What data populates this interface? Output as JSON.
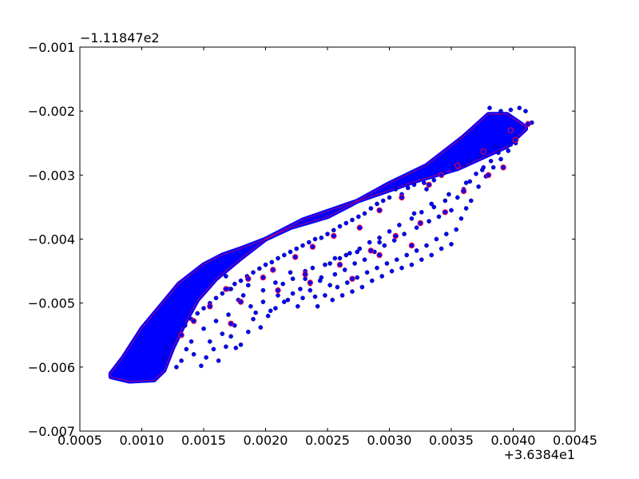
{
  "chart_data": {
    "type": "scatter",
    "title": "",
    "xlabel": "",
    "ylabel": "",
    "x_offset_label": "+3.6384e1",
    "y_offset_label": "−1.11847e2",
    "xlim": [
      0.0005,
      0.0045
    ],
    "ylim": [
      -0.007,
      -0.001
    ],
    "grid": false,
    "x_ticks": [
      {
        "value": 0.0005,
        "label": "0.0005"
      },
      {
        "value": 0.001,
        "label": "0.0010"
      },
      {
        "value": 0.0015,
        "label": "0.0015"
      },
      {
        "value": 0.002,
        "label": "0.0020"
      },
      {
        "value": 0.0025,
        "label": "0.0025"
      },
      {
        "value": 0.003,
        "label": "0.0030"
      },
      {
        "value": 0.0035,
        "label": "0.0035"
      },
      {
        "value": 0.004,
        "label": "0.0040"
      },
      {
        "value": 0.0045,
        "label": "0.0045"
      }
    ],
    "y_ticks": [
      {
        "value": -0.001,
        "label": "−0.001"
      },
      {
        "value": -0.002,
        "label": "−0.002"
      },
      {
        "value": -0.003,
        "label": "−0.003"
      },
      {
        "value": -0.004,
        "label": "−0.004"
      },
      {
        "value": -0.005,
        "label": "−0.005"
      },
      {
        "value": -0.006,
        "label": "−0.006"
      },
      {
        "value": -0.007,
        "label": "−0.007"
      }
    ],
    "series": [
      {
        "marker": "point",
        "color": "#0000ff",
        "density_region": {
          "upper_edge": [
            [
              0.00075,
              -0.0061
            ],
            [
              0.00085,
              -0.00585
            ],
            [
              0.001,
              -0.0054
            ],
            [
              0.00115,
              -0.00505
            ],
            [
              0.0013,
              -0.0047
            ],
            [
              0.0015,
              -0.0044
            ],
            [
              0.00165,
              -0.00425
            ],
            [
              0.0018,
              -0.00415
            ],
            [
              0.002,
              -0.004
            ],
            [
              0.0022,
              -0.00382
            ],
            [
              0.0025,
              -0.00365
            ],
            [
              0.0027,
              -0.00345
            ],
            [
              0.003,
              -0.00313
            ],
            [
              0.0033,
              -0.00285
            ],
            [
              0.0036,
              -0.0024
            ],
            [
              0.0038,
              -0.00205
            ],
            [
              0.00395,
              -0.00205
            ],
            [
              0.0041,
              -0.00225
            ]
          ],
          "lower_edge": [
            [
              0.0041,
              -0.00228
            ],
            [
              0.00395,
              -0.00255
            ],
            [
              0.0038,
              -0.00268
            ],
            [
              0.00355,
              -0.0029
            ],
            [
              0.0032,
              -0.0031
            ],
            [
              0.0029,
              -0.0033
            ],
            [
              0.0026,
              -0.0035
            ],
            [
              0.0023,
              -0.0037
            ],
            [
              0.002,
              -0.004
            ],
            [
              0.0018,
              -0.0043
            ],
            [
              0.0016,
              -0.00462
            ],
            [
              0.00145,
              -0.00495
            ],
            [
              0.00135,
              -0.0053
            ],
            [
              0.00125,
              -0.0057
            ],
            [
              0.00118,
              -0.00605
            ],
            [
              0.0011,
              -0.0062
            ],
            [
              0.0009,
              -0.00622
            ],
            [
              0.00075,
              -0.00615
            ]
          ]
        },
        "points": [
          [
            0.00381,
            -0.00195
          ],
          [
            0.0039,
            -0.002
          ],
          [
            0.00398,
            -0.00198
          ],
          [
            0.00405,
            -0.00195
          ],
          [
            0.0041,
            -0.002
          ],
          [
            0.00415,
            -0.00218
          ],
          [
            0.00402,
            -0.0024
          ],
          [
            0.00398,
            -0.00252
          ],
          [
            0.00385,
            -0.00255
          ],
          [
            0.00378,
            -0.00262
          ],
          [
            0.00372,
            -0.0027
          ],
          [
            0.00365,
            -0.00278
          ],
          [
            0.0036,
            -0.00283
          ],
          [
            0.00352,
            -0.0029
          ],
          [
            0.00344,
            -0.00297
          ],
          [
            0.00336,
            -0.00308
          ],
          [
            0.0033,
            -0.00322
          ],
          [
            0.00328,
            -0.00312
          ],
          [
            0.0032,
            -0.00315
          ],
          [
            0.00315,
            -0.0032
          ],
          [
            0.0031,
            -0.0033
          ],
          [
            0.00305,
            -0.00322
          ],
          [
            0.003,
            -0.00335
          ],
          [
            0.00295,
            -0.0034
          ],
          [
            0.0029,
            -0.00345
          ],
          [
            0.00285,
            -0.00352
          ],
          [
            0.0028,
            -0.0036
          ],
          [
            0.00275,
            -0.00365
          ],
          [
            0.0027,
            -0.0037
          ],
          [
            0.00265,
            -0.00375
          ],
          [
            0.0026,
            -0.0038
          ],
          [
            0.00255,
            -0.00386
          ],
          [
            0.0025,
            -0.00392
          ],
          [
            0.00245,
            -0.00398
          ],
          [
            0.0024,
            -0.004
          ],
          [
            0.00235,
            -0.00405
          ],
          [
            0.0023,
            -0.0041
          ],
          [
            0.00225,
            -0.00415
          ],
          [
            0.0022,
            -0.0042
          ],
          [
            0.00215,
            -0.00425
          ],
          [
            0.0021,
            -0.0043
          ],
          [
            0.00205,
            -0.00436
          ],
          [
            0.002,
            -0.0044
          ],
          [
            0.00195,
            -0.00446
          ],
          [
            0.0019,
            -0.00452
          ],
          [
            0.00185,
            -0.00458
          ],
          [
            0.0018,
            -0.00465
          ],
          [
            0.00175,
            -0.0047
          ],
          [
            0.0017,
            -0.00478
          ],
          [
            0.00165,
            -0.00485
          ],
          [
            0.0016,
            -0.00492
          ],
          [
            0.00155,
            -0.005
          ],
          [
            0.0015,
            -0.00508
          ],
          [
            0.00145,
            -0.00516
          ],
          [
            0.0014,
            -0.00525
          ],
          [
            0.00135,
            -0.00535
          ],
          [
            0.0013,
            -0.00548
          ],
          [
            0.00125,
            -0.00558
          ],
          [
            0.0012,
            -0.0057
          ],
          [
            0.00118,
            -0.00585
          ],
          [
            0.00168,
            -0.00458
          ],
          [
            0.00172,
            -0.00478
          ],
          [
            0.00178,
            -0.00495
          ],
          [
            0.00182,
            -0.00488
          ],
          [
            0.00188,
            -0.00505
          ],
          [
            0.00192,
            -0.00515
          ],
          [
            0.00198,
            -0.00498
          ],
          [
            0.00204,
            -0.00512
          ],
          [
            0.0021,
            -0.00488
          ],
          [
            0.00214,
            -0.0047
          ],
          [
            0.00218,
            -0.00495
          ],
          [
            0.00222,
            -0.00462
          ],
          [
            0.00228,
            -0.00478
          ],
          [
            0.00232,
            -0.0045
          ],
          [
            0.00236,
            -0.0047
          ],
          [
            0.0024,
            -0.0049
          ],
          [
            0.00244,
            -0.00465
          ],
          [
            0.00248,
            -0.0044
          ],
          [
            0.00252,
            -0.00472
          ],
          [
            0.00256,
            -0.00455
          ],
          [
            0.0026,
            -0.0043
          ],
          [
            0.00264,
            -0.00448
          ],
          [
            0.00268,
            -0.00422
          ],
          [
            0.00272,
            -0.00438
          ],
          [
            0.00276,
            -0.00415
          ],
          [
            0.0028,
            -0.00432
          ],
          [
            0.00284,
            -0.00405
          ],
          [
            0.00288,
            -0.0042
          ],
          [
            0.00292,
            -0.00398
          ],
          [
            0.00296,
            -0.0041
          ],
          [
            0.003,
            -0.00388
          ],
          [
            0.00304,
            -0.00402
          ],
          [
            0.00308,
            -0.00378
          ],
          [
            0.00312,
            -0.00392
          ],
          [
            0.00318,
            -0.00368
          ],
          [
            0.00322,
            -0.00382
          ],
          [
            0.00326,
            -0.00358
          ],
          [
            0.00332,
            -0.00372
          ],
          [
            0.00336,
            -0.0035
          ],
          [
            0.0034,
            -0.00365
          ],
          [
            0.00345,
            -0.0034
          ],
          [
            0.0035,
            -0.00355
          ],
          [
            0.00355,
            -0.00335
          ],
          [
            0.0036,
            -0.00322
          ],
          [
            0.00365,
            -0.0031
          ],
          [
            0.0037,
            -0.00298
          ],
          [
            0.00376,
            -0.00288
          ],
          [
            0.00382,
            -0.00278
          ],
          [
            0.0015,
            -0.0054
          ],
          [
            0.00155,
            -0.0056
          ],
          [
            0.0016,
            -0.00528
          ],
          [
            0.00165,
            -0.00548
          ],
          [
            0.0017,
            -0.00518
          ],
          [
            0.00175,
            -0.00535
          ],
          [
            0.0018,
            -0.00565
          ],
          [
            0.00186,
            -0.00545
          ],
          [
            0.0019,
            -0.00525
          ],
          [
            0.00196,
            -0.00538
          ],
          [
            0.00202,
            -0.0052
          ],
          [
            0.00208,
            -0.00508
          ],
          [
            0.00215,
            -0.00498
          ],
          [
            0.00222,
            -0.00485
          ],
          [
            0.00226,
            -0.00505
          ],
          [
            0.0023,
            -0.00492
          ],
          [
            0.00236,
            -0.0048
          ],
          [
            0.00242,
            -0.00505
          ],
          [
            0.00248,
            -0.00488
          ],
          [
            0.00254,
            -0.00495
          ],
          [
            0.00258,
            -0.00475
          ],
          [
            0.00262,
            -0.00488
          ],
          [
            0.00266,
            -0.00468
          ],
          [
            0.0027,
            -0.00482
          ],
          [
            0.00274,
            -0.0046
          ],
          [
            0.00278,
            -0.00475
          ],
          [
            0.00282,
            -0.00452
          ],
          [
            0.00286,
            -0.00465
          ],
          [
            0.0029,
            -0.00445
          ],
          [
            0.00294,
            -0.00458
          ],
          [
            0.00298,
            -0.00438
          ],
          [
            0.00302,
            -0.0045
          ],
          [
            0.00306,
            -0.00432
          ],
          [
            0.0031,
            -0.00445
          ],
          [
            0.00314,
            -0.00425
          ],
          [
            0.00318,
            -0.0044
          ],
          [
            0.00322,
            -0.00418
          ],
          [
            0.00326,
            -0.00432
          ],
          [
            0.0033,
            -0.0041
          ],
          [
            0.00334,
            -0.00425
          ],
          [
            0.00338,
            -0.004
          ],
          [
            0.00342,
            -0.00415
          ],
          [
            0.00346,
            -0.00392
          ],
          [
            0.0035,
            -0.00408
          ],
          [
            0.00354,
            -0.00385
          ],
          [
            0.00358,
            -0.00368
          ],
          [
            0.00362,
            -0.00352
          ],
          [
            0.00366,
            -0.0034
          ],
          [
            0.00142,
            -0.0058
          ],
          [
            0.00148,
            -0.00598
          ],
          [
            0.00152,
            -0.00585
          ],
          [
            0.00158,
            -0.00572
          ],
          [
            0.00162,
            -0.0059
          ],
          [
            0.00168,
            -0.00568
          ],
          [
            0.00172,
            -0.00552
          ],
          [
            0.00176,
            -0.0057
          ],
          [
            0.00132,
            -0.0059
          ],
          [
            0.00128,
            -0.006
          ],
          [
            0.00136,
            -0.00572
          ],
          [
            0.0014,
            -0.0056
          ],
          [
            0.00265,
            -0.00425
          ],
          [
            0.00245,
            -0.0046
          ],
          [
            0.00232,
            -0.00462
          ],
          [
            0.00252,
            -0.00438
          ],
          [
            0.00198,
            -0.0048
          ],
          [
            0.00186,
            -0.00472
          ],
          [
            0.00208,
            -0.00468
          ],
          [
            0.0022,
            -0.00452
          ],
          [
            0.00238,
            -0.00445
          ],
          [
            0.00256,
            -0.0043
          ],
          [
            0.00274,
            -0.0042
          ],
          [
            0.00292,
            -0.00405
          ],
          [
            0.00372,
            -0.00318
          ],
          [
            0.00378,
            -0.00302
          ],
          [
            0.00384,
            -0.00288
          ],
          [
            0.0039,
            -0.00275
          ],
          [
            0.00396,
            -0.00262
          ],
          [
            0.00402,
            -0.0025
          ],
          [
            0.00388,
            -0.00265
          ],
          [
            0.00375,
            -0.00292
          ],
          [
            0.00362,
            -0.00312
          ],
          [
            0.00348,
            -0.0033
          ],
          [
            0.00334,
            -0.00345
          ],
          [
            0.0032,
            -0.0036
          ]
        ]
      },
      {
        "marker": "contour",
        "color": "#ff0033",
        "outliers": [
          [
            0.00355,
            -0.00285
          ],
          [
            0.00342,
            -0.003
          ],
          [
            0.00332,
            -0.00315
          ],
          [
            0.0031,
            -0.00335
          ],
          [
            0.00292,
            -0.00355
          ],
          [
            0.00276,
            -0.00382
          ],
          [
            0.00255,
            -0.00395
          ],
          [
            0.00238,
            -0.00412
          ],
          [
            0.00224,
            -0.00428
          ],
          [
            0.00206,
            -0.00448
          ],
          [
            0.00186,
            -0.00462
          ],
          [
            0.00168,
            -0.00478
          ],
          [
            0.00155,
            -0.00505
          ],
          [
            0.00142,
            -0.00528
          ],
          [
            0.00132,
            -0.0055
          ],
          [
            0.0018,
            -0.00498
          ],
          [
            0.0021,
            -0.0048
          ],
          [
            0.00232,
            -0.00455
          ],
          [
            0.0026,
            -0.0044
          ],
          [
            0.00285,
            -0.00418
          ],
          [
            0.00305,
            -0.00395
          ],
          [
            0.00325,
            -0.00375
          ],
          [
            0.00345,
            -0.00358
          ],
          [
            0.0036,
            -0.00325
          ],
          [
            0.0038,
            -0.003
          ],
          [
            0.00392,
            -0.00288
          ],
          [
            0.00402,
            -0.00245
          ],
          [
            0.00398,
            -0.0023
          ],
          [
            0.00412,
            -0.0022
          ],
          [
            0.00376,
            -0.00263
          ],
          [
            0.0027,
            -0.00462
          ],
          [
            0.00236,
            -0.00468
          ],
          [
            0.00292,
            -0.00425
          ],
          [
            0.00318,
            -0.0041
          ],
          [
            0.00198,
            -0.0046
          ],
          [
            0.00172,
            -0.00532
          ]
        ]
      }
    ]
  }
}
